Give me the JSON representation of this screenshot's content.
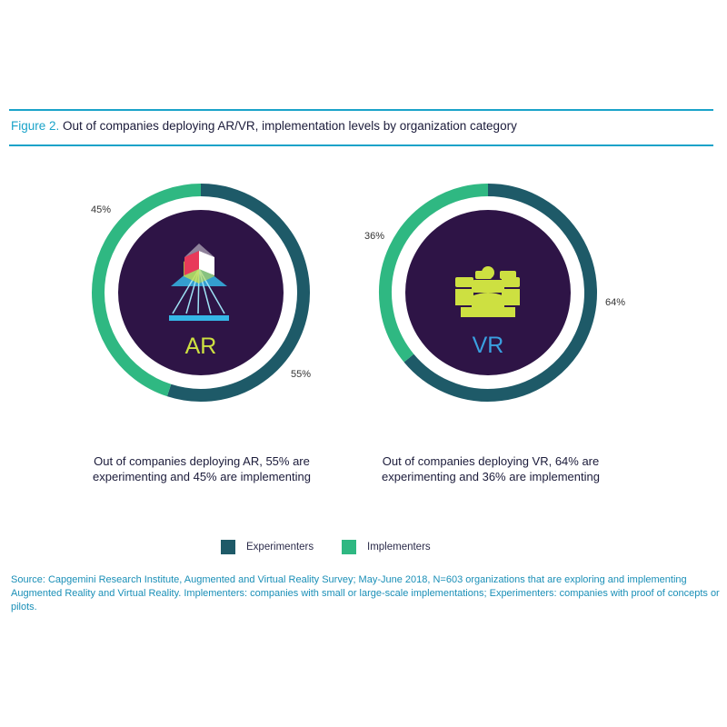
{
  "figure": {
    "number_label": "Figure 2.",
    "title": "Out of companies deploying AR/VR, implementation levels by organization category"
  },
  "colors": {
    "experimenters": "#1e5a68",
    "implementers": "#2fb882",
    "inner_circle": "#2e1446",
    "accent_line": "#1aa3c9",
    "ar_text": "#cde041",
    "vr_text": "#3aa0e0"
  },
  "chart_data": [
    {
      "type": "pie",
      "center_label": "AR",
      "categories": [
        "Experimenters",
        "Implementers"
      ],
      "values": [
        55,
        45
      ],
      "value_labels": [
        "55%",
        "45%"
      ],
      "caption": "Out of companies deploying AR, 55% are experimenting and 45% are implementing"
    },
    {
      "type": "pie",
      "center_label": "VR",
      "categories": [
        "Experimenters",
        "Implementers"
      ],
      "values": [
        64,
        36
      ],
      "value_labels": [
        "64%",
        "36%"
      ],
      "caption": "Out of companies deploying VR, 64% are experimenting and 36% are implementing"
    }
  ],
  "legend": {
    "experimenters": "Experimenters",
    "implementers": "Implementers"
  },
  "source": "Source: Capgemini Research Institute, Augmented and Virtual Reality Survey; May-June 2018, N=603 organizations that are exploring and implementing Augmented Reality and Virtual Reality. Implementers: companies with small or large-scale implementations; Experimenters: companies with proof of concepts or pilots."
}
